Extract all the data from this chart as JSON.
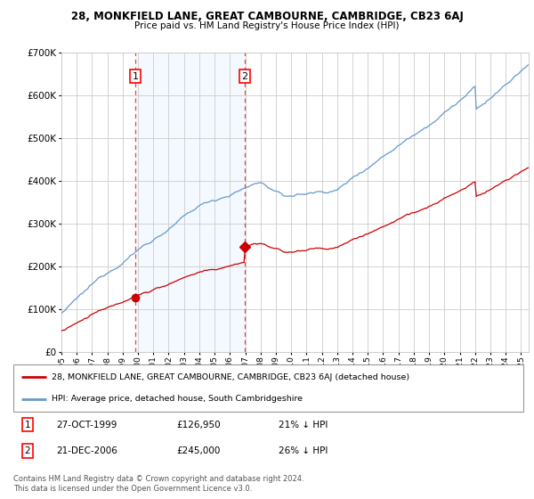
{
  "title": "28, MONKFIELD LANE, GREAT CAMBOURNE, CAMBRIDGE, CB23 6AJ",
  "subtitle": "Price paid vs. HM Land Registry's House Price Index (HPI)",
  "legend_line1": "28, MONKFIELD LANE, GREAT CAMBOURNE, CAMBRIDGE, CB23 6AJ (detached house)",
  "legend_line2": "HPI: Average price, detached house, South Cambridgeshire",
  "footnote": "Contains HM Land Registry data © Crown copyright and database right 2024.\nThis data is licensed under the Open Government Licence v3.0.",
  "sale1_label": "1",
  "sale1_date": "27-OCT-1999",
  "sale1_price": "£126,950",
  "sale1_hpi": "21% ↓ HPI",
  "sale2_label": "2",
  "sale2_date": "21-DEC-2006",
  "sale2_price": "£245,000",
  "sale2_hpi": "26% ↓ HPI",
  "sale1_x": 1999.82,
  "sale2_x": 2006.97,
  "sale1_y": 126950,
  "sale2_y": 245000,
  "ylim": [
    0,
    700000
  ],
  "xlim_start": 1995.0,
  "xlim_end": 2025.5,
  "red_color": "#cc0000",
  "blue_color": "#6699cc",
  "shaded_region_color": "#ddeeff",
  "grid_color": "#cccccc",
  "background_color": "#ffffff"
}
